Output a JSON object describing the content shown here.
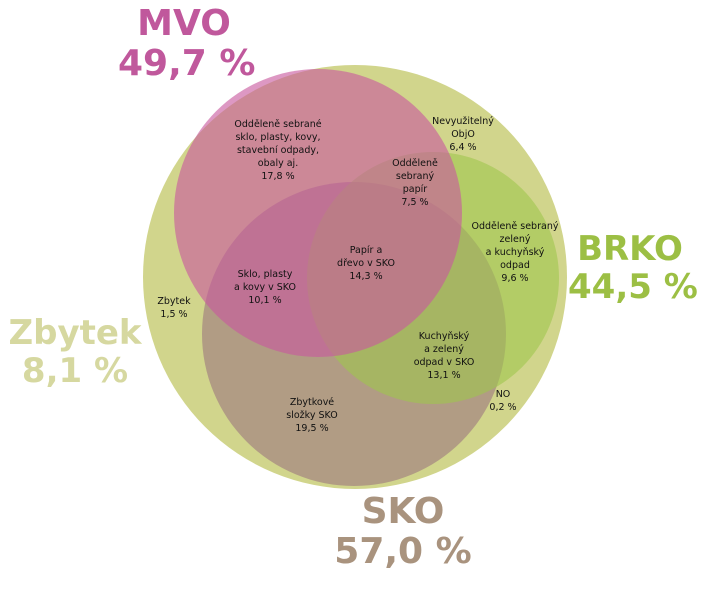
{
  "colors": {
    "mvo": "#c8589e",
    "brko": "#9fc64c",
    "sko": "#ad9683",
    "zbytek": "#d8dc97",
    "outer_circle": "#d1d58c"
  },
  "sets": {
    "mvo": {
      "name": "MVO",
      "value": "49,7 %"
    },
    "brko": {
      "name": "BRKO",
      "value": "44,5 %"
    },
    "sko": {
      "name": "SKO",
      "value": "57,0 %"
    },
    "zbytek": {
      "name": "Zbytek",
      "value": "8,1 %"
    }
  },
  "regions": {
    "mvo_separated": {
      "lines": [
        "Odděleně sebrané",
        "sklo, plasty, kovy,",
        "stavební odpady,",
        "obaly aj."
      ],
      "value": "17,8 %"
    },
    "nevyuzitelny": {
      "lines": [
        "Nevyužitelný",
        "ObjO"
      ],
      "value": "6,4 %"
    },
    "paper_sep": {
      "lines": [
        "Odděleně",
        "sebraný",
        "papír"
      ],
      "value": "7,5 %"
    },
    "green_sep": {
      "lines": [
        "Odděleně sebraný",
        "zelený",
        "a kuchyňský",
        "odpad"
      ],
      "value": "9,6 %"
    },
    "paper_wood": {
      "lines": [
        "Papír a",
        "dřevo v SKO"
      ],
      "value": "14,3 %"
    },
    "glass_sko": {
      "lines": [
        "Sklo, plasty",
        "a kovy v SKO"
      ],
      "value": "10,1 %"
    },
    "zbytek_small": {
      "lines": [
        "Zbytek"
      ],
      "value": "1,5 %"
    },
    "kitchen_sko": {
      "lines": [
        "Kuchyňský",
        "a zelený",
        "odpad v SKO"
      ],
      "value": "13,1 %"
    },
    "rest_sko": {
      "lines": [
        "Zbytkové",
        "složky SKO"
      ],
      "value": "19,5 %"
    },
    "no": {
      "lines": [
        "NO"
      ],
      "value": "0,2 %"
    }
  }
}
